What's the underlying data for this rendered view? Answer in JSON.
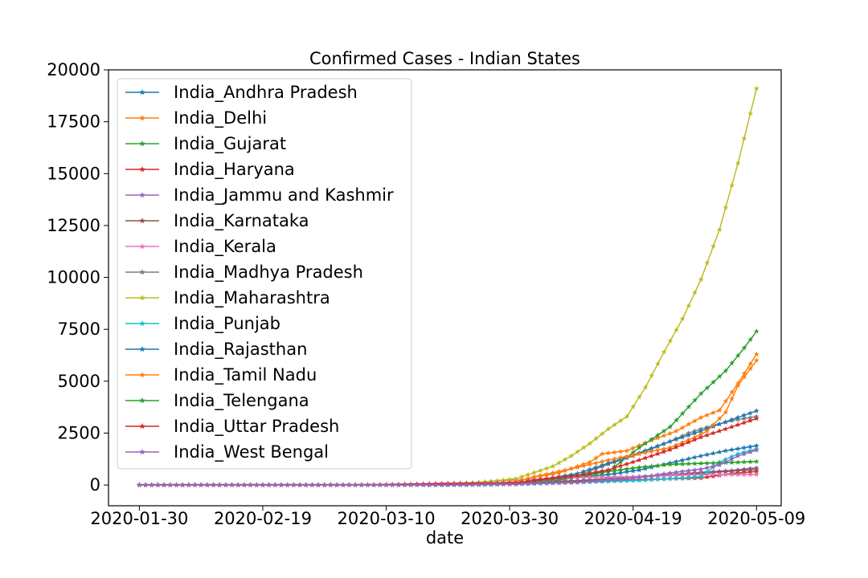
{
  "chart_data": {
    "type": "line",
    "title": "Confirmed Cases - Indian States",
    "xlabel": "date",
    "ylabel": "",
    "x_start": "2020-01-30",
    "x_end": "2020-05-09",
    "xlim": [
      "2020-01-25",
      "2020-05-13"
    ],
    "ylim": [
      -1000,
      20000
    ],
    "x_ticks": [
      "2020-01-30",
      "2020-02-19",
      "2020-03-10",
      "2020-03-30",
      "2020-04-19",
      "2020-05-09"
    ],
    "y_ticks": [
      0,
      2500,
      5000,
      7500,
      10000,
      12500,
      15000,
      17500,
      20000
    ],
    "legend_position": "top-left",
    "marker": "star",
    "grid": false,
    "series": [
      {
        "name": "India_Andhra Pradesh",
        "color": "#1f77b4",
        "points": [
          [
            "2020-03-15",
            0
          ],
          [
            "2020-03-25",
            10
          ],
          [
            "2020-03-31",
            40
          ],
          [
            "2020-04-05",
            250
          ],
          [
            "2020-04-10",
            370
          ],
          [
            "2020-04-15",
            500
          ],
          [
            "2020-04-20",
            720
          ],
          [
            "2020-04-25",
            1060
          ],
          [
            "2020-04-30",
            1400
          ],
          [
            "2020-05-04",
            1650
          ],
          [
            "2020-05-09",
            1890
          ]
        ]
      },
      {
        "name": "India_Delhi",
        "color": "#ff7f0e",
        "points": [
          [
            "2020-03-02",
            1
          ],
          [
            "2020-03-20",
            20
          ],
          [
            "2020-03-27",
            40
          ],
          [
            "2020-03-31",
            150
          ],
          [
            "2020-04-03",
            380
          ],
          [
            "2020-04-07",
            580
          ],
          [
            "2020-04-10",
            900
          ],
          [
            "2020-04-12",
            1100
          ],
          [
            "2020-04-14",
            1500
          ],
          [
            "2020-04-18",
            1650
          ],
          [
            "2020-04-22",
            2150
          ],
          [
            "2020-04-26",
            2600
          ],
          [
            "2020-04-30",
            3250
          ],
          [
            "2020-05-03",
            3600
          ],
          [
            "2020-05-06",
            4900
          ],
          [
            "2020-05-09",
            6300
          ]
        ]
      },
      {
        "name": "India_Gujarat",
        "color": "#2ca02c",
        "points": [
          [
            "2020-03-20",
            0
          ],
          [
            "2020-03-25",
            40
          ],
          [
            "2020-03-31",
            80
          ],
          [
            "2020-04-05",
            140
          ],
          [
            "2020-04-10",
            380
          ],
          [
            "2020-04-15",
            650
          ],
          [
            "2020-04-20",
            1800
          ],
          [
            "2020-04-25",
            2800
          ],
          [
            "2020-04-30",
            4400
          ],
          [
            "2020-05-04",
            5500
          ],
          [
            "2020-05-07",
            6600
          ],
          [
            "2020-05-09",
            7400
          ]
        ]
      },
      {
        "name": "India_Haryana",
        "color": "#d62728",
        "points": [
          [
            "2020-03-05",
            0
          ],
          [
            "2020-03-31",
            40
          ],
          [
            "2020-04-10",
            170
          ],
          [
            "2020-04-20",
            250
          ],
          [
            "2020-04-30",
            340
          ],
          [
            "2020-05-05",
            550
          ],
          [
            "2020-05-09",
            650
          ]
        ]
      },
      {
        "name": "India_Jammu and Kashmir",
        "color": "#9467bd",
        "points": [
          [
            "2020-03-10",
            0
          ],
          [
            "2020-03-31",
            60
          ],
          [
            "2020-04-10",
            200
          ],
          [
            "2020-04-20",
            370
          ],
          [
            "2020-04-30",
            610
          ],
          [
            "2020-05-05",
            700
          ],
          [
            "2020-05-09",
            830
          ]
        ]
      },
      {
        "name": "India_Karnataka",
        "color": "#8c564b",
        "points": [
          [
            "2020-03-10",
            0
          ],
          [
            "2020-03-31",
            100
          ],
          [
            "2020-04-10",
            200
          ],
          [
            "2020-04-20",
            410
          ],
          [
            "2020-04-30",
            560
          ],
          [
            "2020-05-05",
            670
          ],
          [
            "2020-05-09",
            750
          ]
        ]
      },
      {
        "name": "India_Kerala",
        "color": "#e377c2",
        "points": [
          [
            "2020-01-30",
            1
          ],
          [
            "2020-03-10",
            15
          ],
          [
            "2020-03-24",
            110
          ],
          [
            "2020-03-31",
            240
          ],
          [
            "2020-04-10",
            360
          ],
          [
            "2020-04-20",
            400
          ],
          [
            "2020-04-30",
            500
          ],
          [
            "2020-05-09",
            500
          ]
        ]
      },
      {
        "name": "India_Madhya Pradesh",
        "color": "#7f7f7f",
        "points": [
          [
            "2020-03-22",
            0
          ],
          [
            "2020-03-31",
            50
          ],
          [
            "2020-04-05",
            200
          ],
          [
            "2020-04-10",
            450
          ],
          [
            "2020-04-15",
            1000
          ],
          [
            "2020-04-20",
            1500
          ],
          [
            "2020-04-25",
            2100
          ],
          [
            "2020-04-28",
            2500
          ],
          [
            "2020-04-30",
            2700
          ],
          [
            "2020-05-05",
            3100
          ],
          [
            "2020-05-09",
            3300
          ]
        ]
      },
      {
        "name": "India_Maharashtra",
        "color": "#bcbd22",
        "points": [
          [
            "2020-03-10",
            2
          ],
          [
            "2020-03-20",
            50
          ],
          [
            "2020-03-25",
            120
          ],
          [
            "2020-03-31",
            300
          ],
          [
            "2020-04-03",
            600
          ],
          [
            "2020-04-06",
            900
          ],
          [
            "2020-04-09",
            1400
          ],
          [
            "2020-04-12",
            2000
          ],
          [
            "2020-04-15",
            2700
          ],
          [
            "2020-04-18",
            3300
          ],
          [
            "2020-04-21",
            4700
          ],
          [
            "2020-04-24",
            6400
          ],
          [
            "2020-04-27",
            8000
          ],
          [
            "2020-04-30",
            9900
          ],
          [
            "2020-05-03",
            12300
          ],
          [
            "2020-05-06",
            15500
          ],
          [
            "2020-05-09",
            19100
          ]
        ]
      },
      {
        "name": "India_Punjab",
        "color": "#17becf",
        "points": [
          [
            "2020-03-10",
            0
          ],
          [
            "2020-03-31",
            40
          ],
          [
            "2020-04-10",
            120
          ],
          [
            "2020-04-20",
            220
          ],
          [
            "2020-04-25",
            300
          ],
          [
            "2020-04-30",
            390
          ],
          [
            "2020-05-03",
            1100
          ],
          [
            "2020-05-06",
            1500
          ],
          [
            "2020-05-09",
            1730
          ]
        ]
      },
      {
        "name": "India_Rajasthan",
        "color": "#1f77b4",
        "points": [
          [
            "2020-03-03",
            1
          ],
          [
            "2020-03-20",
            20
          ],
          [
            "2020-03-31",
            90
          ],
          [
            "2020-04-05",
            300
          ],
          [
            "2020-04-10",
            550
          ],
          [
            "2020-04-15",
            1050
          ],
          [
            "2020-04-20",
            1550
          ],
          [
            "2020-04-25",
            2100
          ],
          [
            "2020-04-30",
            2600
          ],
          [
            "2020-05-05",
            3150
          ],
          [
            "2020-05-09",
            3570
          ]
        ]
      },
      {
        "name": "India_Tamil Nadu",
        "color": "#ff7f0e",
        "points": [
          [
            "2020-03-10",
            1
          ],
          [
            "2020-03-25",
            20
          ],
          [
            "2020-03-31",
            150
          ],
          [
            "2020-04-03",
            400
          ],
          [
            "2020-04-07",
            650
          ],
          [
            "2020-04-10",
            850
          ],
          [
            "2020-04-15",
            1200
          ],
          [
            "2020-04-20",
            1500
          ],
          [
            "2020-04-25",
            1800
          ],
          [
            "2020-04-29",
            2300
          ],
          [
            "2020-05-01",
            2600
          ],
          [
            "2020-05-04",
            3500
          ],
          [
            "2020-05-06",
            4800
          ],
          [
            "2020-05-09",
            6000
          ]
        ]
      },
      {
        "name": "India_Telengana",
        "color": "#2ca02c",
        "points": [
          [
            "2020-03-05",
            0
          ],
          [
            "2020-03-31",
            80
          ],
          [
            "2020-04-05",
            270
          ],
          [
            "2020-04-10",
            470
          ],
          [
            "2020-04-15",
            650
          ],
          [
            "2020-04-20",
            850
          ],
          [
            "2020-04-25",
            990
          ],
          [
            "2020-04-30",
            1040
          ],
          [
            "2020-05-05",
            1085
          ],
          [
            "2020-05-09",
            1130
          ]
        ]
      },
      {
        "name": "India_Uttar Pradesh",
        "color": "#d62728",
        "points": [
          [
            "2020-03-05",
            1
          ],
          [
            "2020-03-31",
            100
          ],
          [
            "2020-04-05",
            300
          ],
          [
            "2020-04-10",
            450
          ],
          [
            "2020-04-15",
            730
          ],
          [
            "2020-04-20",
            1200
          ],
          [
            "2020-04-25",
            1700
          ],
          [
            "2020-04-30",
            2300
          ],
          [
            "2020-05-05",
            2800
          ],
          [
            "2020-05-09",
            3200
          ]
        ]
      },
      {
        "name": "India_West Bengal",
        "color": "#9467bd",
        "points": [
          [
            "2020-03-18",
            0
          ],
          [
            "2020-03-31",
            40
          ],
          [
            "2020-04-10",
            120
          ],
          [
            "2020-04-20",
            360
          ],
          [
            "2020-04-25",
            580
          ],
          [
            "2020-04-30",
            760
          ],
          [
            "2020-05-03",
            960
          ],
          [
            "2020-05-06",
            1400
          ],
          [
            "2020-05-09",
            1680
          ]
        ]
      }
    ]
  }
}
